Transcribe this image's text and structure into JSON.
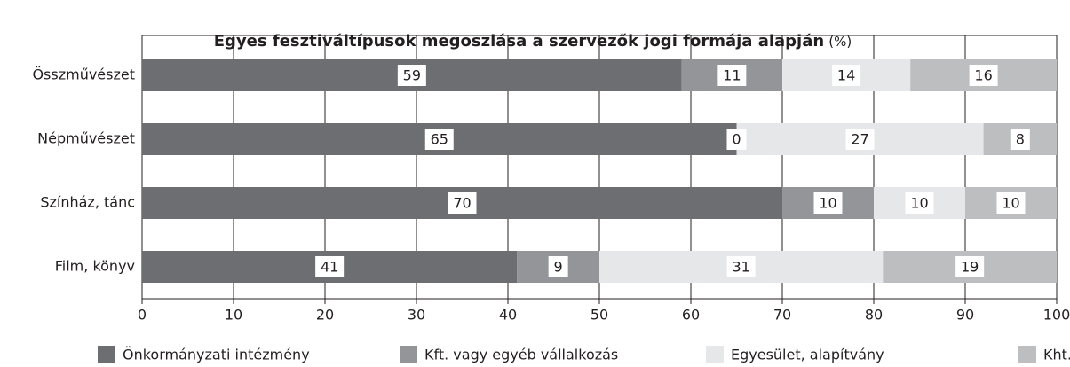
{
  "chart_data": {
    "type": "stacked_barh",
    "title": "Egyes fesztiváltípusok megoszlása a szervezők jogi formája alapján",
    "title_unit": "(%)",
    "categories": [
      "Összművészet",
      "Népművészet",
      "Színház, tánc",
      "Film, könyv"
    ],
    "series": [
      {
        "name": "Önkormányzati intézmény",
        "color": "#6d6e71",
        "values": [
          59,
          65,
          70,
          41
        ]
      },
      {
        "name": "Kft. vagy egyéb vállalkozás",
        "color": "#939598",
        "values": [
          11,
          0,
          10,
          9
        ]
      },
      {
        "name": "Egyesület, alapítvány",
        "color": "#e6e7e8",
        "values": [
          14,
          27,
          10,
          31
        ]
      },
      {
        "name": "Kht.",
        "color": "#bcbec0",
        "values": [
          16,
          8,
          10,
          19
        ]
      }
    ],
    "xlim": [
      0,
      100
    ],
    "xticks": [
      0,
      10,
      20,
      30,
      40,
      50,
      60,
      70,
      80,
      90,
      100
    ],
    "grid": true
  }
}
